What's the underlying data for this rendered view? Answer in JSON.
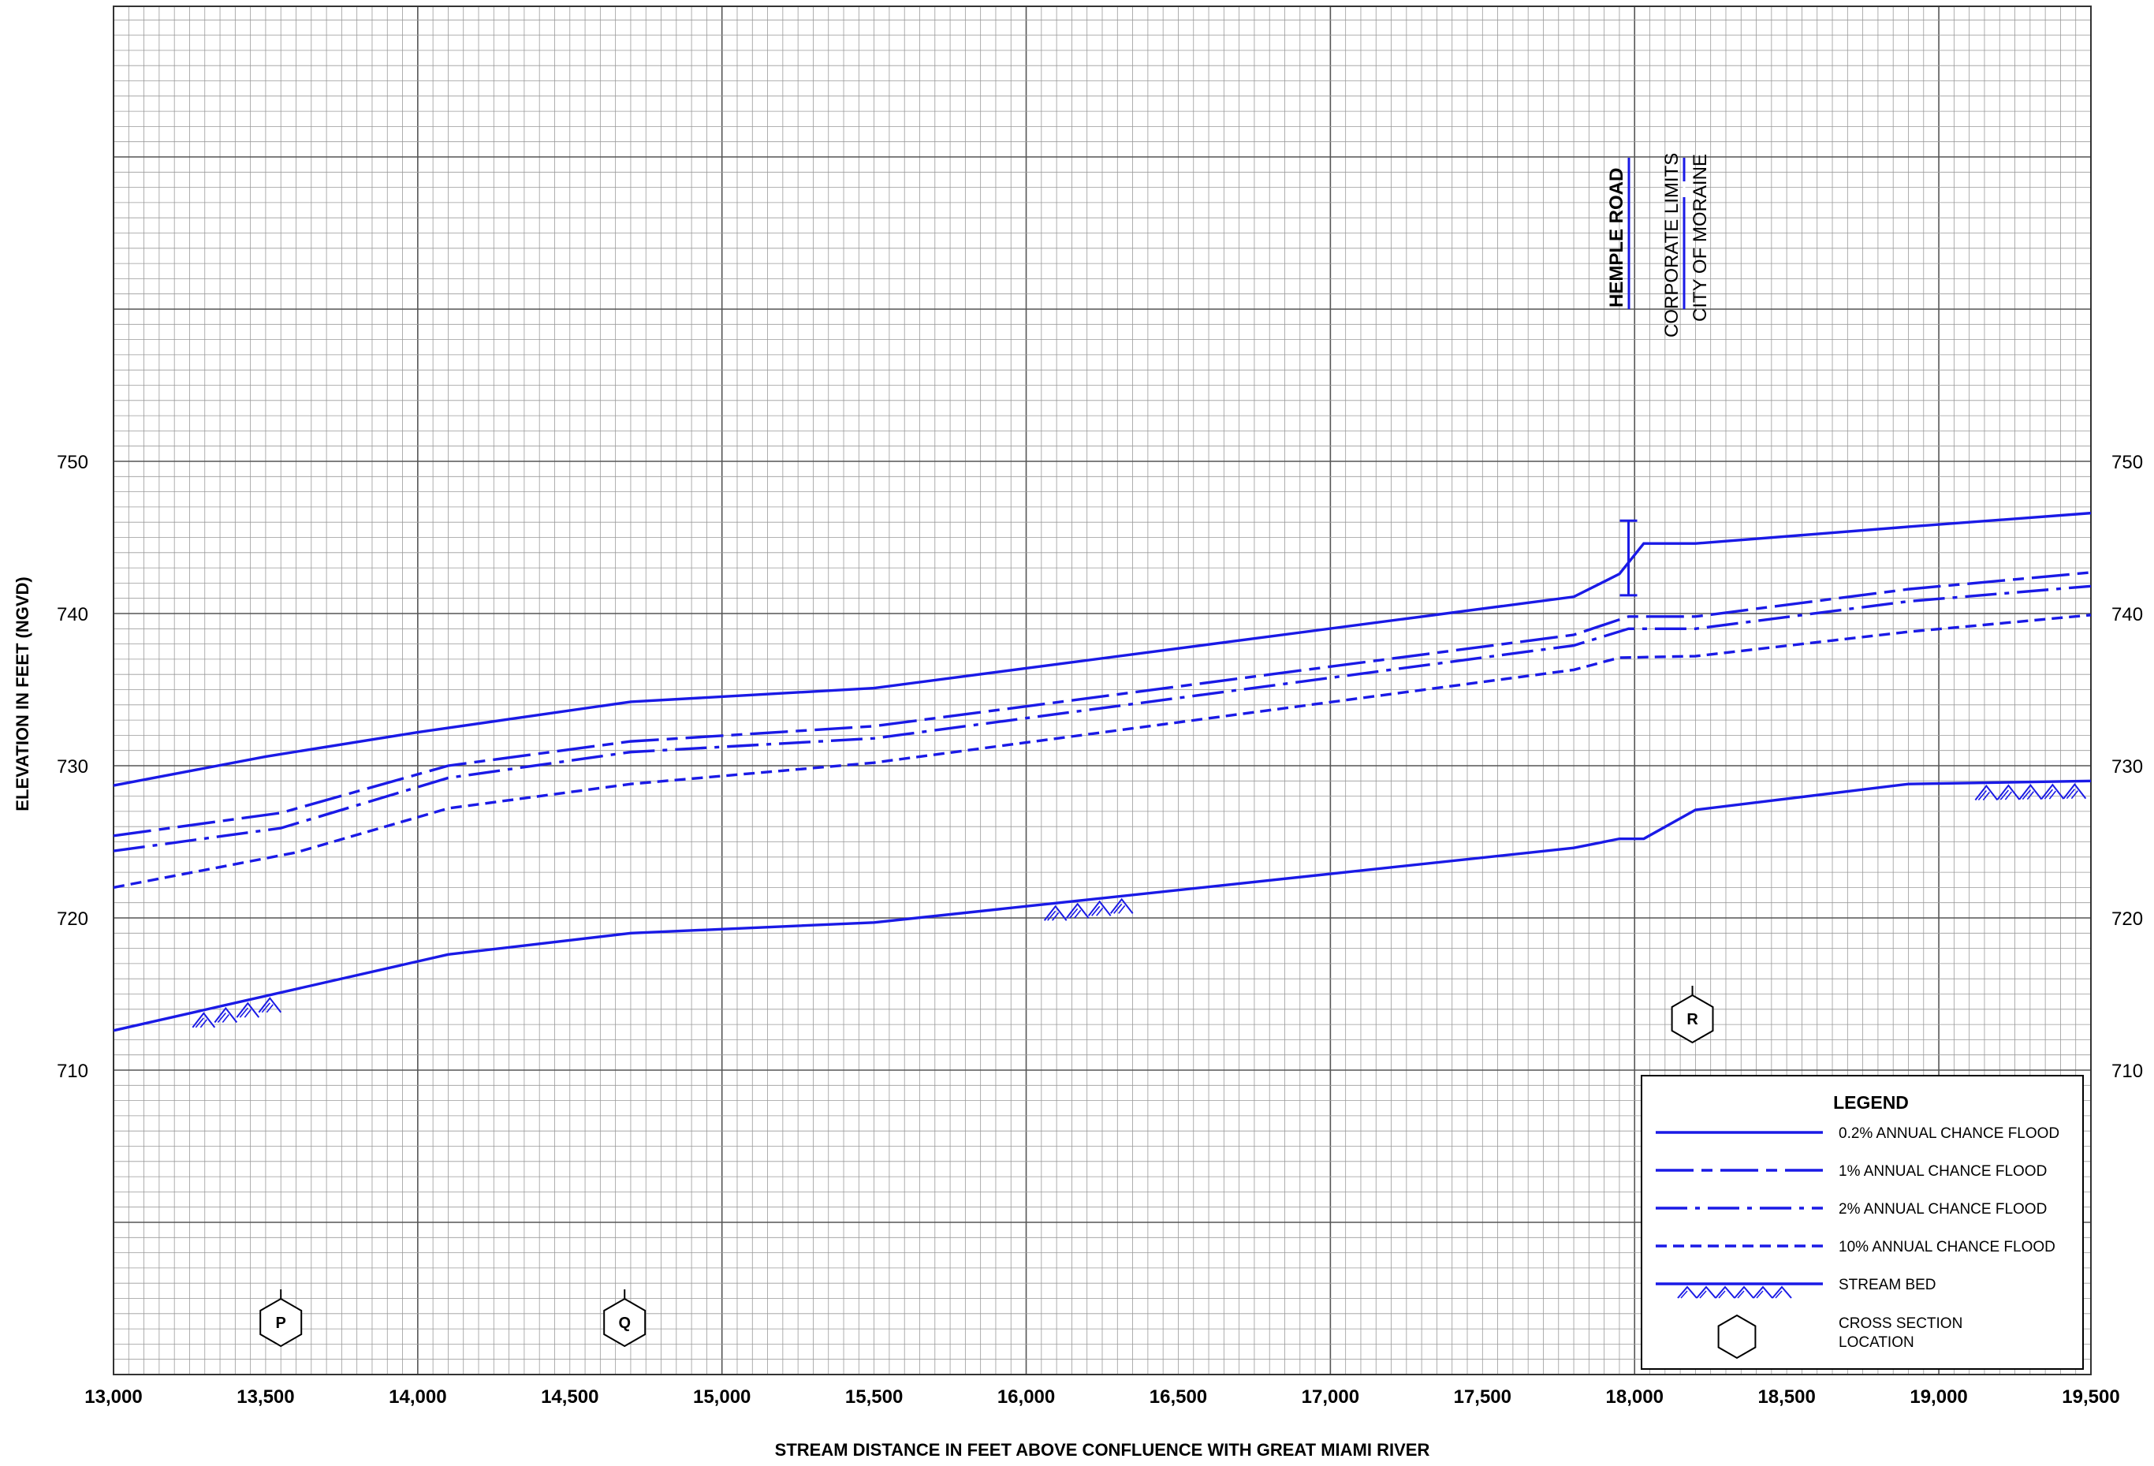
{
  "chart_data": {
    "type": "line",
    "title": "",
    "xlabel": "STREAM DISTANCE IN FEET ABOVE CONFLUENCE WITH GREAT MIAMI RIVER",
    "ylabel": "ELEVATION IN FEET (NGVD)",
    "xlim": [
      13000,
      19500
    ],
    "ylim": [
      700,
      760
    ],
    "x_ticks": [
      "13,000",
      "13,500",
      "14,000",
      "14,500",
      "15,000",
      "15,500",
      "16,000",
      "16,500",
      "17,000",
      "17,500",
      "18,000",
      "18,500",
      "19,000",
      "19,500"
    ],
    "y_ticks": [
      "710",
      "720",
      "730",
      "740",
      "750"
    ],
    "grid": true,
    "legend_position": "bottom-right",
    "series": [
      {
        "name": "0.2% ANNUAL CHANCE FLOOD",
        "style": "solid",
        "color": "#1a1ae6",
        "x": [
          13000,
          13500,
          14000,
          14700,
          15500,
          17800,
          17950,
          18030,
          18200,
          18900,
          19500
        ],
        "y": [
          728.7,
          730.6,
          732.2,
          734.2,
          735.1,
          741.1,
          742.6,
          744.6,
          744.6,
          745.7,
          746.6
        ]
      },
      {
        "name": "1% ANNUAL CHANCE FLOOD",
        "style": "long-dash-short-dash",
        "color": "#1a1ae6",
        "x": [
          13000,
          13550,
          14100,
          14700,
          15500,
          17800,
          17980,
          18200,
          18900,
          19500
        ],
        "y": [
          725.4,
          726.9,
          730.0,
          731.6,
          732.6,
          738.6,
          739.8,
          739.8,
          741.6,
          742.7
        ]
      },
      {
        "name": "2% ANNUAL CHANCE FLOOD",
        "style": "dash-dot",
        "color": "#1a1ae6",
        "x": [
          13000,
          13550,
          14100,
          14700,
          15500,
          17800,
          17980,
          18200,
          18900,
          19500
        ],
        "y": [
          724.4,
          725.9,
          729.2,
          730.9,
          731.8,
          737.9,
          739.0,
          739.0,
          740.8,
          741.8
        ]
      },
      {
        "name": "10% ANNUAL CHANCE FLOOD",
        "style": "short-dash",
        "color": "#1a1ae6",
        "x": [
          13000,
          13600,
          14100,
          14700,
          15500,
          17800,
          17950,
          18200,
          18900,
          19500
        ],
        "y": [
          722.0,
          724.3,
          727.2,
          728.8,
          730.2,
          736.3,
          737.1,
          737.2,
          738.8,
          739.9
        ]
      },
      {
        "name": "STREAM BED",
        "style": "solid-hatched",
        "color": "#1a1ae6",
        "x": [
          13000,
          14100,
          14700,
          15500,
          17800,
          17950,
          18030,
          18200,
          18900,
          19500
        ],
        "y": [
          712.6,
          717.6,
          719.0,
          719.7,
          724.6,
          725.2,
          725.2,
          727.1,
          728.8,
          729.0
        ]
      }
    ],
    "hatch_groups": [
      {
        "x0": 13260,
        "x1": 13620
      },
      {
        "x0": 16060,
        "x1": 16420
      },
      {
        "x0": 19120,
        "x1": 19490
      }
    ],
    "bridge": {
      "x": 17980,
      "y_low": 741.2,
      "y_high": 746.1
    },
    "annotations": {
      "road": "HEMPLE ROAD",
      "limits_line1": "CORPORATE LIMITS",
      "limits_line2": "CITY OF MORAINE"
    },
    "cross_sections": [
      {
        "label": "P",
        "x": 13550
      },
      {
        "label": "Q",
        "x": 14680
      },
      {
        "label": "R",
        "x": 18190
      }
    ],
    "legend": {
      "title": "LEGEND",
      "items": [
        {
          "label": "0.2% ANNUAL CHANCE FLOOD",
          "style": "solid"
        },
        {
          "label": "1% ANNUAL CHANCE FLOOD",
          "style": "long-dash-short-dash"
        },
        {
          "label": "2% ANNUAL CHANCE FLOOD",
          "style": "dash-dot"
        },
        {
          "label": "10% ANNUAL CHANCE FLOOD",
          "style": "short-dash"
        },
        {
          "label": "STREAM BED",
          "style": "solid-hatched"
        },
        {
          "label": "CROSS SECTION LOCATION",
          "style": "hexagon",
          "label_line1": "CROSS SECTION",
          "label_line2": "LOCATION"
        }
      ]
    }
  }
}
